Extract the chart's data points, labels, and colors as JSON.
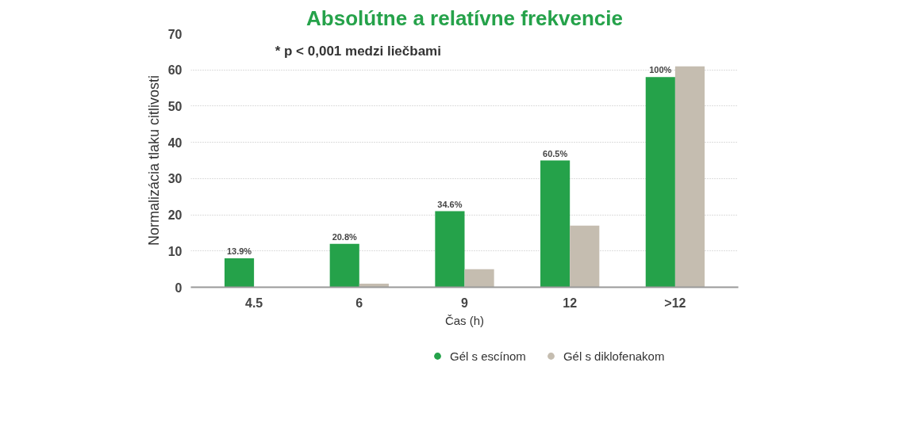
{
  "chart_data": {
    "type": "bar",
    "title": "Absolútne a relatívne frekvencie",
    "xlabel": "Čas (h)",
    "ylabel": "Normalizácia tlaku citlivosti",
    "annotations": [
      "* p < 0,001 medzi liečbami",
      {
        "text": "13.9%",
        "x": "4.5",
        "y": 8
      },
      {
        "text": "20.8%",
        "x": "6",
        "y": 12
      },
      {
        "text": "34.6%",
        "x": "9",
        "y": 21
      },
      {
        "text": "60.5%",
        "x": "12",
        "y": 35
      },
      {
        "text": "100%",
        "x": ">12",
        "y": 58
      }
    ],
    "categories": [
      "4.5",
      "6",
      "9",
      "12",
      ">12"
    ],
    "series": [
      {
        "name": "Gél s escínom",
        "color": "#25a24a",
        "values": [
          8,
          12,
          21,
          35,
          58
        ]
      },
      {
        "name": "Gél s diklofenakom",
        "color": "#c5bdb0",
        "values": [
          0,
          1,
          5,
          17,
          61
        ]
      }
    ],
    "ylim": [
      0,
      70
    ],
    "yticks": [
      0,
      10,
      20,
      30,
      40,
      50,
      60,
      70
    ],
    "grid": "y",
    "legend": "bottom"
  }
}
